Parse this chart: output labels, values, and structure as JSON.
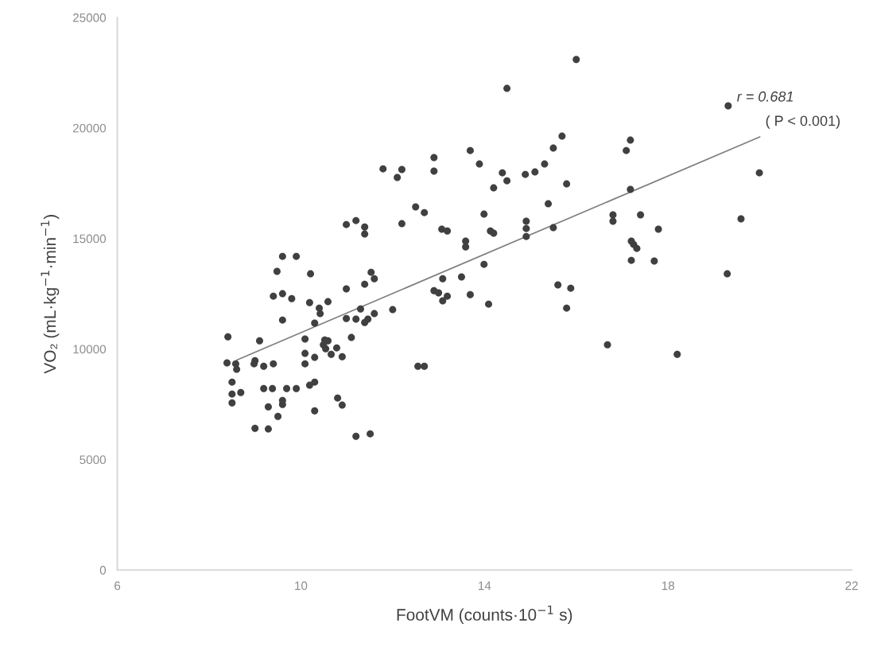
{
  "chart_data": {
    "type": "scatter",
    "xlabel": "FootVM (counts·10$^{−1}$ s)",
    "ylabel": "VO₂ (mL·kg$^{−1}$·min$^{−1}$)",
    "xlim": [
      6,
      22
    ],
    "xticks": [
      6,
      10,
      14,
      18,
      22
    ],
    "ylim": [
      0,
      25000
    ],
    "yticks": [
      0,
      5000,
      10000,
      15000,
      20000,
      25000
    ],
    "annotations": [
      "r = 0.681",
      "( P < 0.001)"
    ],
    "series": [
      {
        "marker": "circle",
        "color": "#404040",
        "x": [
          9.6,
          9.9,
          9.48,
          10.21,
          11.53,
          11.6,
          11.39,
          10.99,
          9.4,
          9.6,
          9.8,
          10.19,
          10.59,
          10.4,
          10.42,
          11.3,
          12.0,
          11.6,
          11.46,
          11.39,
          10.99,
          11.2,
          9.6,
          10.3,
          8.41,
          9.1,
          10.09,
          10.52,
          10.59,
          10.49,
          10.54,
          10.66,
          10.78,
          10.9,
          11.1,
          10.09,
          10.3,
          10.09,
          8.39,
          8.58,
          8.6,
          9.0,
          8.98,
          9.19,
          9.4,
          8.5,
          8.5,
          8.69,
          8.5,
          9.19,
          9.38,
          9.69,
          9.9,
          10.19,
          10.3,
          9.6,
          9.6,
          9.29,
          9.5,
          10.3,
          10.8,
          10.9,
          9.0,
          9.29,
          11.2,
          11.51,
          11.79,
          12.2,
          12.1,
          12.9,
          12.9,
          13.69,
          13.89,
          14.39,
          14.49,
          14.2,
          14.89,
          15.1,
          15.31,
          15.5,
          15.79,
          15.39,
          13.99,
          14.91,
          14.91,
          14.91,
          15.5,
          12.5,
          12.69,
          12.2,
          13.07,
          13.19,
          14.13,
          14.2,
          13.59,
          13.59,
          13.99,
          13.5,
          13.09,
          12.9,
          13.0,
          13.19,
          13.09,
          13.69,
          14.09,
          15.6,
          15.88,
          15.79,
          10.99,
          11.2,
          11.39,
          11.39,
          12.55,
          12.69,
          14.49,
          15.69,
          17.18,
          17.09,
          19.31,
          17.18,
          16.8,
          16.8,
          17.4,
          17.79,
          17.2,
          17.25,
          17.32,
          17.2,
          17.7,
          19.59,
          19.29,
          16.68,
          18.2,
          16.0,
          19.99
        ],
        "values": [
          14190,
          14190,
          13510,
          13400,
          13470,
          13180,
          12930,
          12720,
          12390,
          12500,
          12280,
          12100,
          12140,
          11850,
          11600,
          11810,
          11780,
          11600,
          11350,
          11200,
          11380,
          11350,
          11310,
          11170,
          10550,
          10370,
          10450,
          10410,
          10370,
          10190,
          10010,
          9760,
          10050,
          9650,
          10520,
          9800,
          9620,
          9330,
          9370,
          9330,
          9080,
          9470,
          9330,
          9220,
          9330,
          8500,
          7960,
          8030,
          7560,
          8210,
          8210,
          8210,
          8210,
          8360,
          8500,
          7670,
          7490,
          7380,
          6950,
          7200,
          7780,
          7460,
          6410,
          6380,
          6050,
          6160,
          18150,
          18120,
          17760,
          18660,
          18050,
          18980,
          18370,
          17970,
          17610,
          17290,
          17900,
          18010,
          18370,
          19090,
          17470,
          16570,
          16100,
          15780,
          15450,
          15090,
          15490,
          16430,
          16170,
          15670,
          15420,
          15340,
          15340,
          15240,
          14880,
          14620,
          13830,
          13260,
          13180,
          12640,
          12540,
          12390,
          12180,
          12460,
          12030,
          12900,
          12750,
          11850,
          15630,
          15810,
          15520,
          15200,
          9220,
          9220,
          21790,
          19630,
          19450,
          18980,
          21000,
          17220,
          16070,
          15780,
          16070,
          15420,
          14880,
          14730,
          14550,
          14010,
          13980,
          15890,
          13400,
          10190,
          9760,
          23100,
          17970
        ]
      },
      {
        "type": "line",
        "color": "#7f7f7f",
        "x": [
          8.6,
          20.0
        ],
        "values": [
          9500,
          19600
        ]
      }
    ]
  }
}
